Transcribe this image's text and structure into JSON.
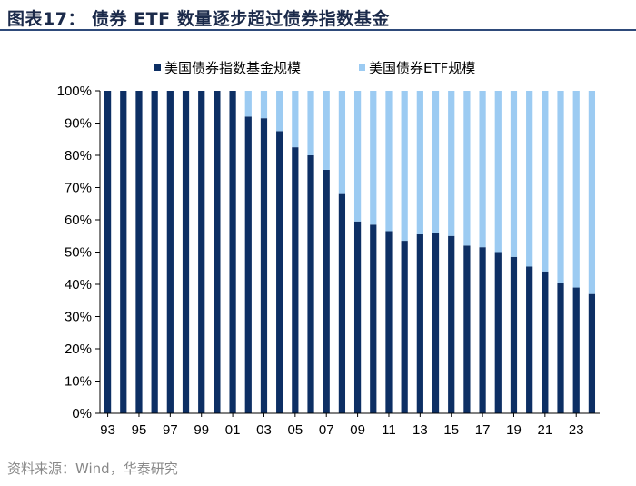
{
  "figure": {
    "title": "图表17：  债券 ETF 数量逐步超过债券指数基金",
    "source": "资料来源：Wind，华泰研究"
  },
  "colors": {
    "index_fund": "#0d2f64",
    "etf": "#9ccbf2",
    "title_text": "#1b2a4a"
  },
  "chart_data": {
    "type": "bar",
    "stacked": true,
    "title": "债券 ETF 数量逐步超过债券指数基金",
    "xlabel": "",
    "ylabel": "",
    "ylim": [
      0,
      100
    ],
    "yticks": [
      0,
      10,
      20,
      30,
      40,
      50,
      60,
      70,
      80,
      90,
      100
    ],
    "ytick_labels": [
      "0%",
      "10%",
      "20%",
      "30%",
      "40%",
      "50%",
      "60%",
      "70%",
      "80%",
      "90%",
      "100%"
    ],
    "x_tick_labels": [
      "93",
      "95",
      "97",
      "99",
      "01",
      "03",
      "05",
      "07",
      "09",
      "11",
      "13",
      "15",
      "17",
      "19",
      "21",
      "23"
    ],
    "categories": [
      "93",
      "94",
      "95",
      "96",
      "97",
      "98",
      "99",
      "00",
      "01",
      "02",
      "03",
      "04",
      "05",
      "06",
      "07",
      "08",
      "09",
      "10",
      "11",
      "12",
      "13",
      "14",
      "15",
      "16",
      "17",
      "18",
      "19",
      "20",
      "21",
      "22",
      "23",
      "24"
    ],
    "legend_position": "top-center",
    "series": [
      {
        "name": "美国债券指数基金规模",
        "color_key": "index_fund",
        "values": [
          100,
          100,
          100,
          100,
          100,
          100,
          100,
          100,
          100,
          92,
          91.5,
          87.5,
          82.5,
          80,
          75.5,
          68,
          59.5,
          58.5,
          56.5,
          53.5,
          55.5,
          55.8,
          55,
          52,
          51.5,
          50,
          48.5,
          45.5,
          44,
          40.5,
          39,
          37
        ]
      },
      {
        "name": "美国债券ETF规模",
        "color_key": "etf",
        "values": [
          0,
          0,
          0,
          0,
          0,
          0,
          0,
          0,
          0,
          8,
          8.5,
          12.5,
          17.5,
          20,
          24.5,
          32,
          40.5,
          41.5,
          43.5,
          46.5,
          44.5,
          44.2,
          45,
          48,
          48.5,
          50,
          51.5,
          54.5,
          56,
          59.5,
          61,
          63
        ]
      }
    ]
  }
}
